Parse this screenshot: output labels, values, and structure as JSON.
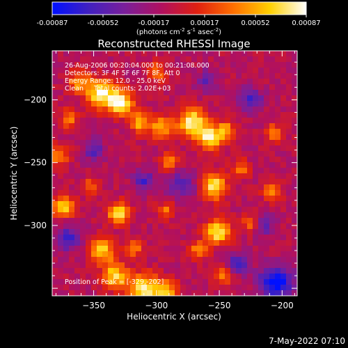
{
  "colorbar": {
    "ticks": [
      "-0.00087",
      "-0.00052",
      "-0.00017",
      "0.00017",
      "0.00052",
      "0.00087"
    ],
    "units_html": "(photons cm<tspan baseline-shift='super' font-size='7'>-2</tspan> s<tspan baseline-shift='super' font-size='7'>-1</tspan> asec<tspan baseline-shift='super' font-size='7'>-2</tspan>)",
    "units": "(photons cm-2 s-1 asec-2)",
    "stops": [
      "#0010ff",
      "#4020c0",
      "#7a1f9a",
      "#b01060",
      "#e02010",
      "#ff7000",
      "#ffd000",
      "#ffffff"
    ]
  },
  "chart_data": {
    "type": "heatmap",
    "title": "Reconstructed RHESSI Image",
    "xlabel": "Heliocentric X (arcsec)",
    "ylabel": "Heliocentric Y (arcsec)",
    "xlim": [
      -383,
      -188
    ],
    "ylim": [
      -356,
      -161
    ],
    "xticks": [
      -350,
      -300,
      -250,
      -200
    ],
    "xtick_labels": [
      "−350",
      "−300",
      "−250",
      "−200"
    ],
    "yticks": [
      -200,
      -250,
      -300
    ],
    "ytick_labels": [
      "−200",
      "−250",
      "−300"
    ],
    "zlim": [
      -0.00087,
      0.00087
    ],
    "annotations": [
      "26-Aug-2006 00:20:04.000 to 00:21:08.000",
      "Detectors: 3F 4F 5F 6F 7F 8F, Att 0",
      "Energy Range: 12.0 - 25.0 keV",
      "Clean     Total counts: 2.02E+03"
    ],
    "peak_label": "Position of Peak = [-329,-202]",
    "peak": [
      -329,
      -202
    ],
    "sources": [
      {
        "x": -329,
        "y": -202,
        "amp": 1.0,
        "s": 7
      },
      {
        "x": -345,
        "y": -195,
        "amp": 0.9,
        "s": 8
      },
      {
        "x": -362,
        "y": -186,
        "amp": 0.6,
        "s": 6
      },
      {
        "x": -300,
        "y": -178,
        "amp": 0.55,
        "s": 5
      },
      {
        "x": -313,
        "y": -218,
        "amp": 0.65,
        "s": 6
      },
      {
        "x": -296,
        "y": -222,
        "amp": 0.7,
        "s": 6
      },
      {
        "x": -272,
        "y": -218,
        "amp": 0.95,
        "s": 8
      },
      {
        "x": -257,
        "y": -230,
        "amp": 0.9,
        "s": 7
      },
      {
        "x": -244,
        "y": -224,
        "amp": 0.6,
        "s": 5
      },
      {
        "x": -290,
        "y": -250,
        "amp": 0.55,
        "s": 5
      },
      {
        "x": -254,
        "y": -269,
        "amp": 0.9,
        "s": 7
      },
      {
        "x": -233,
        "y": -255,
        "amp": 0.5,
        "s": 5
      },
      {
        "x": -206,
        "y": -227,
        "amp": 0.6,
        "s": 5
      },
      {
        "x": -208,
        "y": -273,
        "amp": 0.55,
        "s": 5
      },
      {
        "x": -374,
        "y": -285,
        "amp": 0.8,
        "s": 6
      },
      {
        "x": -352,
        "y": -270,
        "amp": 0.5,
        "s": 5
      },
      {
        "x": -330,
        "y": -290,
        "amp": 0.85,
        "s": 6
      },
      {
        "x": -343,
        "y": -320,
        "amp": 0.75,
        "s": 7
      },
      {
        "x": -333,
        "y": -340,
        "amp": 0.8,
        "s": 7
      },
      {
        "x": -318,
        "y": -318,
        "amp": 0.55,
        "s": 5
      },
      {
        "x": -292,
        "y": -288,
        "amp": 0.45,
        "s": 5
      },
      {
        "x": -251,
        "y": -305,
        "amp": 0.9,
        "s": 7
      },
      {
        "x": -266,
        "y": -320,
        "amp": 0.6,
        "s": 5
      },
      {
        "x": -247,
        "y": -340,
        "amp": 0.5,
        "s": 5
      },
      {
        "x": -225,
        "y": -298,
        "amp": 0.5,
        "s": 5
      },
      {
        "x": -310,
        "y": -350,
        "amp": 0.95,
        "s": 8
      },
      {
        "x": -292,
        "y": -352,
        "amp": 0.7,
        "s": 6
      },
      {
        "x": -378,
        "y": -245,
        "amp": 0.5,
        "s": 6
      },
      {
        "x": -370,
        "y": -215,
        "amp": 0.5,
        "s": 5
      }
    ],
    "sinks": [
      {
        "x": -205,
        "y": -345,
        "amp": 0.9,
        "s": 9
      },
      {
        "x": -235,
        "y": -330,
        "amp": 0.5,
        "s": 6
      },
      {
        "x": -280,
        "y": -268,
        "amp": 0.45,
        "s": 8
      },
      {
        "x": -310,
        "y": -265,
        "amp": 0.5,
        "s": 6
      },
      {
        "x": -370,
        "y": -310,
        "amp": 0.55,
        "s": 7
      },
      {
        "x": -350,
        "y": -240,
        "amp": 0.45,
        "s": 6
      },
      {
        "x": -225,
        "y": -200,
        "amp": 0.5,
        "s": 7
      },
      {
        "x": -260,
        "y": -185,
        "amp": 0.4,
        "s": 6
      },
      {
        "x": -215,
        "y": -300,
        "amp": 0.4,
        "s": 6
      }
    ]
  },
  "footer": {
    "timestamp": "7-May-2022 07:10"
  }
}
